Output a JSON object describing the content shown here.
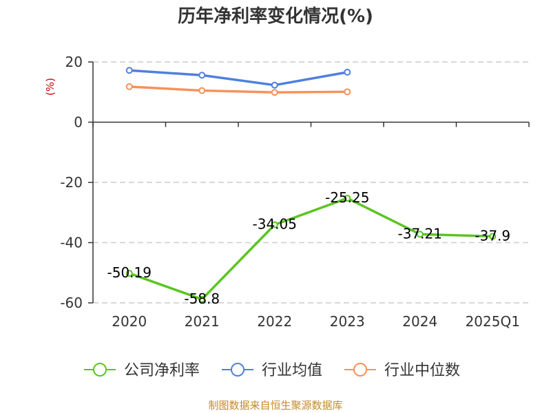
{
  "chart_data": {
    "type": "line",
    "title": "历年净利率变化情况(%)",
    "ylabel": "(%)",
    "categories": [
      "2020",
      "2021",
      "2022",
      "2023",
      "2024",
      "2025Q1"
    ],
    "ylim": [
      -60,
      20
    ],
    "yticks": [
      "20",
      "0",
      "-20",
      "-40",
      "-60"
    ],
    "grid": true,
    "legend_position": "bottom",
    "series": [
      {
        "name": "公司净利率",
        "color": "#5ac51f",
        "values": [
          -50.19,
          -58.8,
          -34.05,
          -25.25,
          -37.21,
          -37.9
        ],
        "labels": [
          "-50.19",
          "-58.8",
          "-34.05",
          "-25.25",
          "-37.21",
          "-37.9"
        ]
      },
      {
        "name": "行业均值",
        "color": "#4f7fdf",
        "values": [
          17.2,
          15.6,
          12.3,
          16.6,
          null,
          null
        ]
      },
      {
        "name": "行业中位数",
        "color": "#f79159",
        "values": [
          11.8,
          10.5,
          9.9,
          10.1,
          null,
          null
        ]
      }
    ],
    "source": "制图数据来自恒生聚源数据库"
  }
}
